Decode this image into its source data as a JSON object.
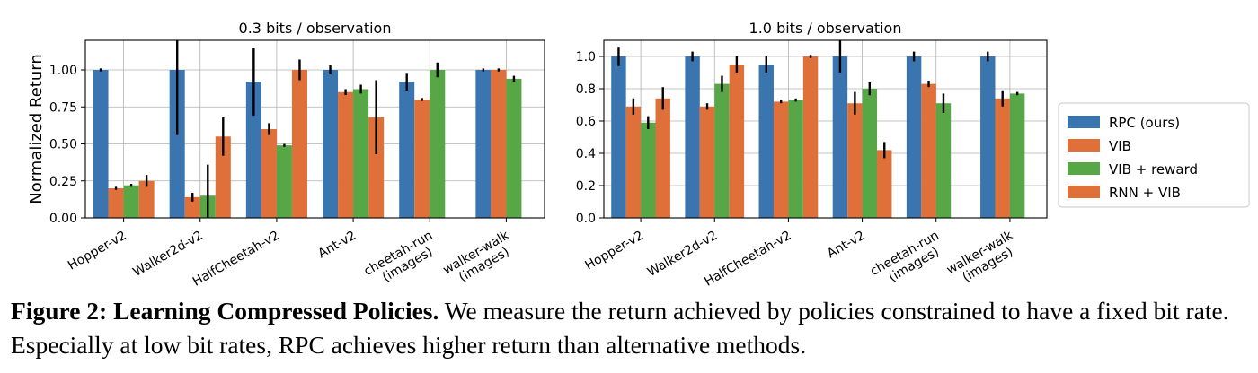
{
  "caption": {
    "label": "Figure 2:",
    "title": "Learning Compressed Policies.",
    "text": "We measure the return achieved by policies constrained to have a fixed bit rate. Especially at low bit rates, RPC achieves higher return than alternative methods."
  },
  "chart_data": [
    {
      "type": "bar",
      "title": "0.3 bits / observation",
      "ylabel": "Normalized Return",
      "xlabel": "",
      "ylim": [
        0,
        1.2
      ],
      "yticks": [
        "0.00",
        "0.25",
        "0.50",
        "0.75",
        "1.00"
      ],
      "grid": true,
      "categories": [
        [
          "Hopper-v2"
        ],
        [
          "Walker2d-v2"
        ],
        [
          "HalfCheetah-v2"
        ],
        [
          "Ant-v2"
        ],
        [
          "cheetah-run",
          "(images)"
        ],
        [
          "walker-walk",
          "(images)"
        ]
      ],
      "series": [
        {
          "name": "RPC (ours)",
          "color": "#3a75b0",
          "values": [
            1.0,
            1.0,
            0.92,
            1.0,
            0.92,
            1.0
          ],
          "err": [
            0.01,
            0.44,
            0.23,
            0.03,
            0.06,
            0.01
          ]
        },
        {
          "name": "VIB",
          "color": "#e0703a",
          "values": [
            0.2,
            0.14,
            0.6,
            0.85,
            0.8,
            1.0
          ],
          "err": [
            0.01,
            0.03,
            0.04,
            0.02,
            0.01,
            0.01
          ]
        },
        {
          "name": "VIB + reward",
          "color": "#58a746",
          "values": [
            0.22,
            0.15,
            0.49,
            0.87,
            1.0,
            0.94
          ],
          "err": [
            0.01,
            0.21,
            0.01,
            0.03,
            0.05,
            0.02
          ]
        },
        {
          "name": "RNN + VIB",
          "color": "#e0703a",
          "values": [
            0.25,
            0.55,
            1.0,
            0.68,
            null,
            null
          ],
          "err": [
            0.04,
            0.13,
            0.07,
            0.25,
            null,
            null
          ]
        }
      ]
    },
    {
      "type": "bar",
      "title": "1.0 bits / observation",
      "ylabel": "",
      "xlabel": "",
      "ylim": [
        0,
        1.1
      ],
      "yticks": [
        "0.0",
        "0.2",
        "0.4",
        "0.6",
        "0.8",
        "1.0"
      ],
      "grid": true,
      "legend": "right",
      "categories": [
        [
          "Hopper-v2"
        ],
        [
          "Walker2d-v2"
        ],
        [
          "HalfCheetah-v2"
        ],
        [
          "Ant-v2"
        ],
        [
          "cheetah-run",
          "(images)"
        ],
        [
          "walker-walk",
          "(images)"
        ]
      ],
      "series": [
        {
          "name": "RPC (ours)",
          "color": "#3a75b0",
          "values": [
            1.0,
            1.0,
            0.95,
            1.0,
            1.0,
            1.0
          ],
          "err": [
            0.06,
            0.03,
            0.05,
            0.1,
            0.03,
            0.03
          ]
        },
        {
          "name": "VIB",
          "color": "#e0703a",
          "values": [
            0.69,
            0.69,
            0.72,
            0.71,
            0.83,
            0.74
          ],
          "err": [
            0.05,
            0.02,
            0.01,
            0.07,
            0.02,
            0.05
          ]
        },
        {
          "name": "VIB + reward",
          "color": "#58a746",
          "values": [
            0.59,
            0.83,
            0.73,
            0.8,
            0.71,
            0.77
          ],
          "err": [
            0.04,
            0.05,
            0.01,
            0.04,
            0.06,
            0.01
          ]
        },
        {
          "name": "RNN + VIB",
          "color": "#e0703a",
          "values": [
            0.74,
            0.95,
            1.0,
            0.42,
            null,
            null
          ],
          "err": [
            0.07,
            0.05,
            0.01,
            0.05,
            null,
            null
          ]
        }
      ]
    }
  ]
}
